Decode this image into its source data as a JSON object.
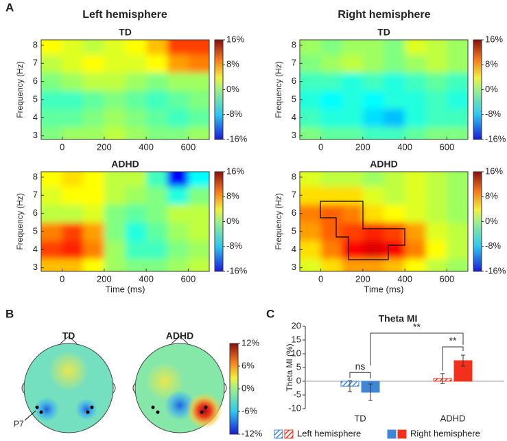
{
  "panel_labels": [
    "A",
    "B",
    "C"
  ],
  "column_titles": [
    "Left hemisphere",
    "Right hemisphere"
  ],
  "chart_data": [
    {
      "type": "heatmap",
      "title": "TD",
      "ylabel": "Frequency (Hz)",
      "x": [
        -50,
        50,
        150,
        250,
        350,
        450,
        550,
        650
      ],
      "y": [
        3,
        4,
        5,
        6,
        7,
        8
      ],
      "z": [
        [
          0,
          1,
          1,
          2,
          1,
          0,
          0,
          1
        ],
        [
          -1,
          -1,
          0,
          1,
          0,
          -1,
          -2,
          -1
        ],
        [
          -2,
          -2,
          -1,
          0,
          -1,
          -2,
          -1,
          0
        ],
        [
          0,
          1,
          2,
          2,
          1,
          0,
          1,
          1
        ],
        [
          2,
          3,
          4,
          3,
          3,
          4,
          7,
          8
        ],
        [
          4,
          3,
          2,
          3,
          4,
          6,
          10,
          10
        ]
      ],
      "xlim": [
        -100,
        700
      ],
      "ylim": [
        2.8,
        8.3
      ],
      "xticks": [
        0,
        200,
        400,
        600
      ],
      "yticks": [
        3,
        4,
        5,
        6,
        7,
        8
      ],
      "clim": [
        -16,
        16
      ],
      "cticks": [
        {
          "value": 16,
          "label": "16%"
        },
        {
          "value": 8,
          "label": "8%"
        },
        {
          "value": 0,
          "label": "0%"
        },
        {
          "value": -8,
          "label": "-8%"
        },
        {
          "value": -16,
          "label": "-16%"
        }
      ]
    },
    {
      "type": "heatmap",
      "title": "TD",
      "ylabel": "Frequency (Hz)",
      "x": [
        -50,
        50,
        150,
        250,
        350,
        450,
        550,
        650
      ],
      "y": [
        3,
        4,
        5,
        6,
        7,
        8
      ],
      "z": [
        [
          0,
          -1,
          -1,
          -2,
          -2,
          -1,
          0,
          0
        ],
        [
          -2,
          -3,
          -3,
          -5,
          -6,
          -3,
          -2,
          -2
        ],
        [
          -3,
          -4,
          -3,
          -4,
          -3,
          -3,
          -2,
          -3
        ],
        [
          -2,
          -2,
          -3,
          -2,
          -3,
          -2,
          -1,
          -2
        ],
        [
          0,
          1,
          2,
          1,
          0,
          1,
          2,
          1
        ],
        [
          1,
          0,
          1,
          1,
          0,
          3,
          2,
          1
        ]
      ],
      "xlim": [
        -100,
        700
      ],
      "ylim": [
        2.8,
        8.3
      ],
      "xticks": [
        0,
        200,
        400,
        600
      ],
      "yticks": [
        3,
        4,
        5,
        6,
        7,
        8
      ],
      "clim": [
        -16,
        16
      ],
      "cticks": [
        {
          "value": 16,
          "label": "16%"
        },
        {
          "value": 8,
          "label": "8%"
        },
        {
          "value": 0,
          "label": "0%"
        },
        {
          "value": -8,
          "label": "-8%"
        },
        {
          "value": -16,
          "label": "-16%"
        }
      ]
    },
    {
      "type": "heatmap",
      "title": "ADHD",
      "ylabel": "Frequency (Hz)",
      "xlabel": "Time (ms)",
      "x": [
        -50,
        50,
        150,
        250,
        350,
        450,
        550,
        650
      ],
      "y": [
        3,
        4,
        5,
        6,
        7,
        8
      ],
      "z": [
        [
          6,
          6,
          4,
          1,
          0,
          0,
          1,
          2
        ],
        [
          10,
          11,
          8,
          1,
          -2,
          -2,
          0,
          1
        ],
        [
          8,
          10,
          7,
          0,
          -3,
          -1,
          1,
          2
        ],
        [
          2,
          2,
          3,
          0,
          -1,
          0,
          2,
          2
        ],
        [
          3,
          4,
          4,
          2,
          1,
          0,
          -3,
          0
        ],
        [
          4,
          5,
          4,
          2,
          2,
          -2,
          -12,
          -4
        ]
      ],
      "xlim": [
        -100,
        700
      ],
      "ylim": [
        2.8,
        8.3
      ],
      "xticks": [
        0,
        200,
        400,
        600
      ],
      "yticks": [
        3,
        4,
        5,
        6,
        7,
        8
      ],
      "clim": [
        -16,
        16
      ],
      "cticks": [
        {
          "value": 16,
          "label": "16%"
        },
        {
          "value": 8,
          "label": "8%"
        },
        {
          "value": 0,
          "label": "0%"
        },
        {
          "value": -8,
          "label": "-8%"
        },
        {
          "value": -16,
          "label": "-16%"
        }
      ]
    },
    {
      "type": "heatmap",
      "title": "ADHD",
      "ylabel": "Frequency (Hz)",
      "xlabel": "Time (ms)",
      "x": [
        -50,
        50,
        150,
        250,
        350,
        450,
        550,
        650
      ],
      "y": [
        3,
        4,
        5,
        6,
        7,
        8
      ],
      "z": [
        [
          3,
          5,
          7,
          7,
          6,
          4,
          2,
          1
        ],
        [
          5,
          8,
          12,
          13,
          12,
          8,
          4,
          2
        ],
        [
          7,
          9,
          10,
          11,
          10,
          7,
          3,
          2
        ],
        [
          8,
          9,
          8,
          5,
          4,
          3,
          2,
          1
        ],
        [
          5,
          5,
          5,
          3,
          2,
          3,
          2,
          1
        ],
        [
          3,
          2,
          2,
          1,
          2,
          3,
          2,
          1
        ]
      ],
      "xlim": [
        -100,
        700
      ],
      "ylim": [
        2.8,
        8.3
      ],
      "xticks": [
        0,
        200,
        400,
        600
      ],
      "yticks": [
        3,
        4,
        5,
        6,
        7,
        8
      ],
      "clim": [
        -16,
        16
      ],
      "cticks": [
        {
          "value": 16,
          "label": "16%"
        },
        {
          "value": 8,
          "label": "8%"
        },
        {
          "value": 0,
          "label": "0%"
        },
        {
          "value": -8,
          "label": "-8%"
        },
        {
          "value": -16,
          "label": "-16%"
        }
      ]
    },
    {
      "type": "topomap",
      "titles": [
        "TD",
        "ADHD"
      ],
      "electrode_label": "P7",
      "clim": [
        -12,
        12
      ],
      "cticks": [
        {
          "value": 12,
          "label": "12%"
        },
        {
          "value": 6,
          "label": "6%"
        },
        {
          "value": 0,
          "label": "0%"
        },
        {
          "value": -6,
          "label": "-6%"
        },
        {
          "value": -12,
          "label": "-12%"
        }
      ]
    },
    {
      "type": "bar",
      "title": "Theta MI",
      "ylabel": "Theta MI (%)",
      "categories": [
        "TD",
        "ADHD"
      ],
      "category_colors": [
        "#3f86d6",
        "#f2301c"
      ],
      "series": [
        {
          "name": "Left hemisphere",
          "hatch": true,
          "values": [
            -1.8,
            1
          ],
          "errors": [
            2,
            1.8
          ]
        },
        {
          "name": "Right hemisphere",
          "hatch": false,
          "values": [
            -4,
            7.5
          ],
          "errors": [
            3,
            2
          ]
        }
      ],
      "annotations": [
        "ns",
        "**",
        "**"
      ],
      "ylim": [
        -10,
        20
      ],
      "yticks": [
        -10,
        -5,
        0,
        5,
        10,
        15,
        20
      ]
    }
  ]
}
